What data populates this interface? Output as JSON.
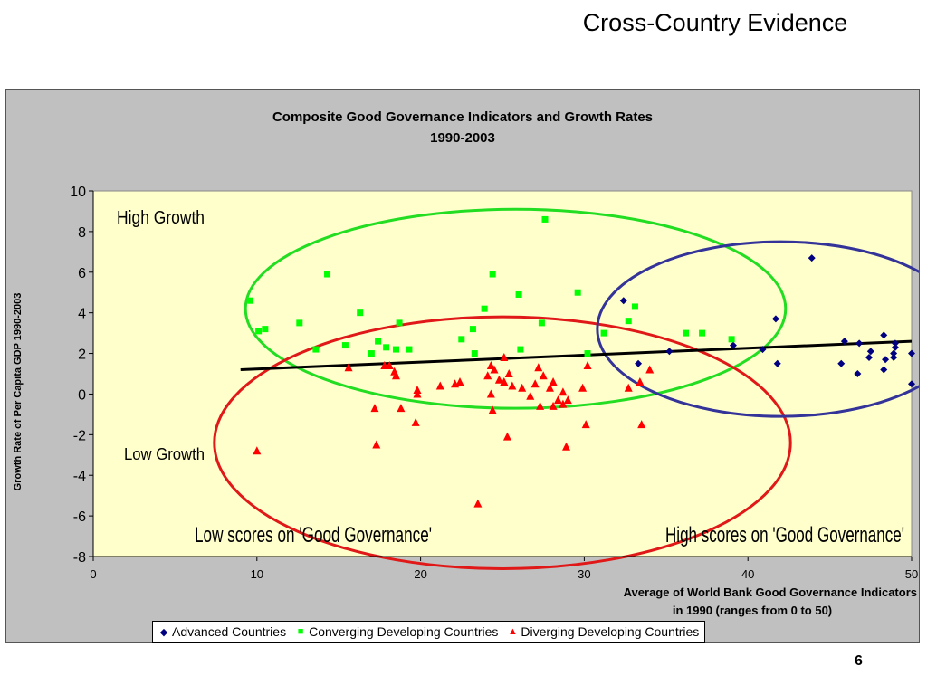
{
  "slide": {
    "title": "Cross-Country Evidence",
    "page_number": "6"
  },
  "colors": {
    "advanced": "#000080",
    "converging": "#00ff00",
    "diverging": "#ff0000",
    "plot_bg": "#ffffcc",
    "frame_bg": "#c0c0c0",
    "trend": "#000000",
    "ellipse_green": "#22dd22",
    "ellipse_red": "#e01818",
    "ellipse_blue": "#333399"
  },
  "annotations": {
    "high_growth": "High Growth",
    "low_growth": "Low Growth",
    "low_scores": "Low scores on 'Good Governance'",
    "high_scores": "High scores on 'Good Governance'"
  },
  "chart_data": {
    "type": "scatter",
    "title": "Composite Good Governance Indicators and Growth Rates",
    "subtitle": "1990-2003",
    "xlabel_line1": "Average of World Bank Good Governance Indicators",
    "xlabel_line2": "in 1990 (ranges from 0 to 50)",
    "ylabel": "Growth Rate of Per Capita GDP 1990-2003",
    "xlim": [
      0,
      50
    ],
    "ylim": [
      -8,
      10
    ],
    "x_ticks": [
      "0",
      "10",
      "20",
      "30",
      "40",
      "50"
    ],
    "y_ticks": [
      "10",
      "8",
      "6",
      "4",
      "2",
      "0",
      "-2",
      "-4",
      "-6",
      "-8"
    ],
    "grid": false,
    "legend_position": "bottom",
    "trendline": {
      "x": [
        9,
        50
      ],
      "y": [
        1.2,
        2.6
      ]
    },
    "ellipses": [
      {
        "name": "high growth",
        "cx": 25.8,
        "cy": 4.2,
        "rx": 16.5,
        "ry": 4.9,
        "color": "ellipse_green"
      },
      {
        "name": "low growth",
        "cx": 25.0,
        "cy": -2.4,
        "rx": 17.6,
        "ry": 6.2,
        "color": "ellipse_red"
      },
      {
        "name": "high governance",
        "cx": 42.0,
        "cy": 3.2,
        "rx": 11.2,
        "ry": 4.3,
        "color": "ellipse_blue"
      }
    ],
    "series": [
      {
        "name": "Advanced Countries",
        "marker": "diamond",
        "color": "advanced",
        "points": [
          [
            32.4,
            4.6
          ],
          [
            33.3,
            1.5
          ],
          [
            35.2,
            2.1
          ],
          [
            39.1,
            2.4
          ],
          [
            40.9,
            2.2
          ],
          [
            41.7,
            3.7
          ],
          [
            41.8,
            1.5
          ],
          [
            43.9,
            6.7
          ],
          [
            45.7,
            1.5
          ],
          [
            45.9,
            2.6
          ],
          [
            46.8,
            2.5
          ],
          [
            46.7,
            1.0
          ],
          [
            47.4,
            1.8
          ],
          [
            47.5,
            2.1
          ],
          [
            48.3,
            2.9
          ],
          [
            48.3,
            1.2
          ],
          [
            48.4,
            1.7
          ],
          [
            48.9,
            2.0
          ],
          [
            49.0,
            2.3
          ],
          [
            48.9,
            1.8
          ],
          [
            49.0,
            2.5
          ],
          [
            50.0,
            2.0
          ],
          [
            50.0,
            0.5
          ]
        ]
      },
      {
        "name": "Converging Developing Countries",
        "marker": "square",
        "color": "converging",
        "points": [
          [
            9.6,
            4.6
          ],
          [
            10.1,
            3.1
          ],
          [
            10.5,
            3.2
          ],
          [
            12.6,
            3.5
          ],
          [
            13.6,
            2.2
          ],
          [
            14.3,
            5.9
          ],
          [
            15.4,
            2.4
          ],
          [
            16.3,
            4.0
          ],
          [
            17.0,
            2.0
          ],
          [
            17.4,
            2.6
          ],
          [
            17.9,
            2.3
          ],
          [
            18.5,
            2.2
          ],
          [
            18.7,
            3.5
          ],
          [
            19.3,
            2.2
          ],
          [
            22.5,
            2.7
          ],
          [
            23.2,
            3.2
          ],
          [
            23.3,
            2.0
          ],
          [
            23.9,
            4.2
          ],
          [
            24.4,
            5.9
          ],
          [
            26.0,
            4.9
          ],
          [
            26.1,
            2.2
          ],
          [
            27.4,
            3.5
          ],
          [
            27.6,
            8.6
          ],
          [
            29.6,
            5.0
          ],
          [
            30.2,
            2.0
          ],
          [
            31.2,
            3.0
          ],
          [
            32.7,
            3.6
          ],
          [
            33.1,
            4.3
          ],
          [
            36.2,
            3.0
          ],
          [
            37.2,
            3.0
          ],
          [
            39.0,
            2.7
          ]
        ]
      },
      {
        "name": "Diverging Developing Countries",
        "marker": "triangle",
        "color": "diverging",
        "points": [
          [
            10.0,
            -2.8
          ],
          [
            15.6,
            1.3
          ],
          [
            17.2,
            -0.7
          ],
          [
            17.3,
            -2.5
          ],
          [
            17.8,
            1.4
          ],
          [
            18.1,
            1.4
          ],
          [
            18.4,
            1.1
          ],
          [
            18.5,
            0.9
          ],
          [
            18.8,
            -0.7
          ],
          [
            19.7,
            -1.4
          ],
          [
            19.8,
            0.2
          ],
          [
            19.8,
            0.0
          ],
          [
            21.2,
            0.4
          ],
          [
            22.1,
            0.5
          ],
          [
            22.4,
            0.6
          ],
          [
            23.5,
            -5.4
          ],
          [
            24.1,
            0.9
          ],
          [
            24.3,
            1.4
          ],
          [
            24.3,
            0.0
          ],
          [
            24.4,
            -0.8
          ],
          [
            24.5,
            1.2
          ],
          [
            24.8,
            0.7
          ],
          [
            25.1,
            1.8
          ],
          [
            25.1,
            0.6
          ],
          [
            25.3,
            -2.1
          ],
          [
            25.4,
            1.0
          ],
          [
            25.6,
            0.4
          ],
          [
            26.2,
            0.3
          ],
          [
            26.7,
            -0.1
          ],
          [
            27.0,
            0.5
          ],
          [
            27.2,
            1.3
          ],
          [
            27.3,
            -0.6
          ],
          [
            27.5,
            0.9
          ],
          [
            27.9,
            0.3
          ],
          [
            28.1,
            -0.6
          ],
          [
            28.1,
            0.6
          ],
          [
            28.4,
            -0.3
          ],
          [
            28.7,
            0.1
          ],
          [
            28.7,
            -0.5
          ],
          [
            28.9,
            -2.6
          ],
          [
            29.0,
            -0.3
          ],
          [
            29.9,
            0.3
          ],
          [
            30.1,
            -1.5
          ],
          [
            30.2,
            1.4
          ],
          [
            32.7,
            0.3
          ],
          [
            33.4,
            0.6
          ],
          [
            33.5,
            -1.5
          ],
          [
            34.0,
            1.2
          ]
        ]
      }
    ]
  }
}
